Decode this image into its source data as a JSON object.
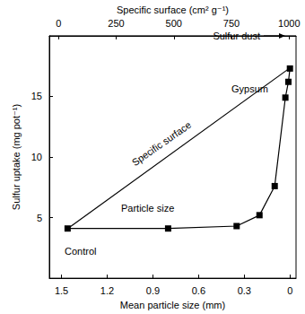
{
  "chart_data": {
    "type": "line",
    "xlabel": "Mean particle size (mm)",
    "x2label": "Specific surface (cm² g⁻¹)",
    "ylabel": "Sulfur uptake (mg pot⁻¹)",
    "xlim": [
      1.58,
      -0.04
    ],
    "xticks": [
      1.5,
      1.2,
      0.9,
      0.6,
      0.3,
      0
    ],
    "x2lim": [
      -40,
      1030
    ],
    "x2ticks": [
      0,
      250,
      500,
      750,
      1000
    ],
    "ylim": [
      0,
      20
    ],
    "yticks": [
      5,
      10,
      15
    ],
    "grid": false,
    "series": [
      {
        "name": "Particle size",
        "color": "#000000",
        "marker": "square",
        "line_style": "solid",
        "x": [
          1.46,
          0.8,
          0.35,
          0.2,
          0.1,
          0.03,
          0.01,
          0.0
        ],
        "values": [
          4.1,
          4.1,
          4.3,
          5.2,
          7.6,
          14.9,
          16.2,
          17.3
        ]
      },
      {
        "name": "Specific surface",
        "axis": "x2",
        "color": "#000000",
        "marker": "none",
        "line_style": "solid",
        "x": [
          40,
          1000
        ],
        "values": [
          4.1,
          17.3
        ]
      }
    ],
    "annotations": [
      "Control",
      "Gypsum",
      "Sulfur dust"
    ]
  }
}
